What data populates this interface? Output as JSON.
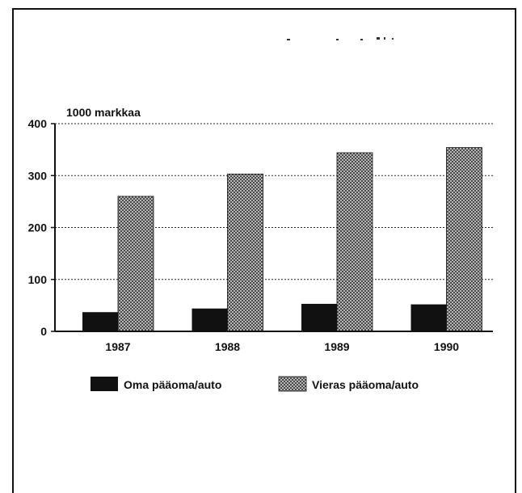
{
  "chart_data": {
    "type": "bar",
    "ylabel": "1000 markkaa",
    "categories": [
      "1987",
      "1988",
      "1989",
      "1990"
    ],
    "series": [
      {
        "name": "Oma pääoma/auto",
        "values": [
          37,
          44,
          53,
          52
        ],
        "color": "#111111",
        "pattern": "solid"
      },
      {
        "name": "Vieras pääoma/auto",
        "values": [
          260,
          303,
          344,
          354
        ],
        "color": "#8a8a8a",
        "pattern": "crosshatch"
      }
    ],
    "ylim": [
      0,
      400
    ],
    "yticks": [
      0,
      100,
      200,
      300,
      400
    ],
    "grid": true,
    "legend": "bottom"
  }
}
